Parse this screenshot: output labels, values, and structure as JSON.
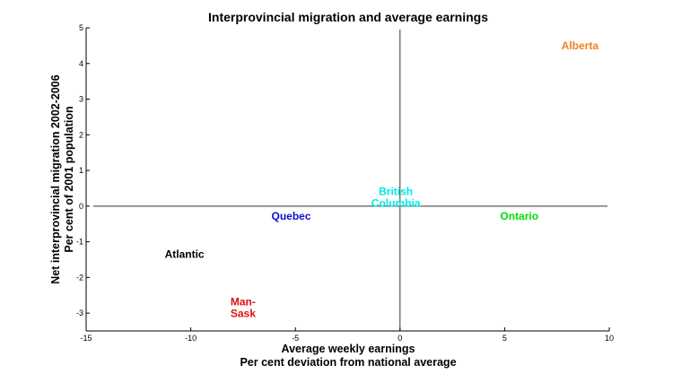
{
  "chart_data": {
    "type": "scatter",
    "title": "Interprovincial migration and average earnings",
    "xlabel": [
      "Average weekly earnings",
      "Per cent deviation from national average"
    ],
    "ylabel": [
      "Net interprovincial migration 2002-2006",
      "Per cent of 2001 population"
    ],
    "xlim": [
      -15,
      10
    ],
    "ylim": [
      -3.5,
      5
    ],
    "xticks": [
      -15,
      -10,
      -5,
      0,
      5,
      10
    ],
    "yticks": [
      -3,
      -2,
      -1,
      0,
      1,
      2,
      3,
      4,
      5
    ],
    "grid": false,
    "points": [
      {
        "label": [
          "Alberta"
        ],
        "x": 8.6,
        "y": 4.5,
        "color": "#f08020"
      },
      {
        "label": [
          "British",
          "Columbia"
        ],
        "x": -0.2,
        "y": 0.25,
        "color": "#00e8e8"
      },
      {
        "label": [
          "Ontario"
        ],
        "x": 5.7,
        "y": -0.28,
        "color": "#00dd00"
      },
      {
        "label": [
          "Quebec"
        ],
        "x": -5.2,
        "y": -0.28,
        "color": "#1010cc"
      },
      {
        "label": [
          "Atlantic"
        ],
        "x": -10.3,
        "y": -1.35,
        "color": "#000000"
      },
      {
        "label": [
          "Man-",
          "Sask"
        ],
        "x": -7.5,
        "y": -2.85,
        "color": "#e01010"
      }
    ]
  }
}
